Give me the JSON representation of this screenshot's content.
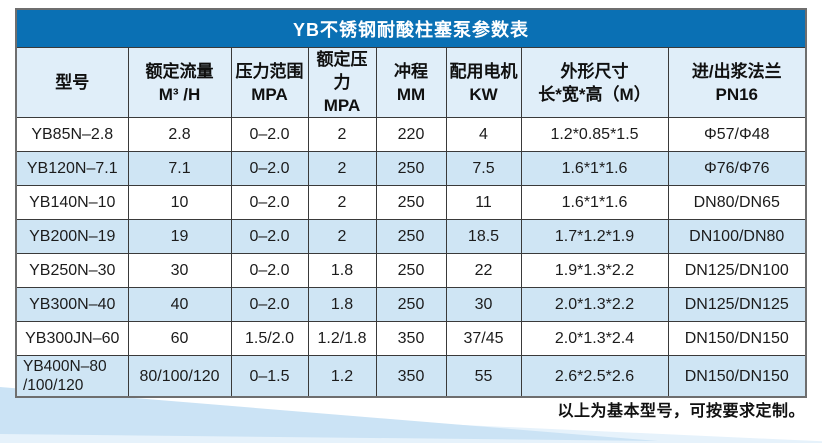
{
  "table": {
    "title": "YB不锈钢耐酸柱塞泵参数表",
    "columns": [
      {
        "id": "model",
        "label": "型号"
      },
      {
        "id": "rated-flow",
        "label": "额定流量\nM³ /H"
      },
      {
        "id": "pressure-range",
        "label": "压力范围\nMPA"
      },
      {
        "id": "rated-pressure",
        "label": "额定压力\nMPA"
      },
      {
        "id": "stroke",
        "label": "冲程\nMM"
      },
      {
        "id": "motor-power",
        "label": "配用电机\nKW"
      },
      {
        "id": "dimensions",
        "label": "外形尺寸\n长*宽*高（M）"
      },
      {
        "id": "flange",
        "label": "进/出浆法兰\nPN16"
      }
    ],
    "rows": [
      [
        "YB85N–2.8",
        "2.8",
        "0–2.0",
        "2",
        "220",
        "4",
        "1.2*0.85*1.5",
        "Φ57/Φ48"
      ],
      [
        "YB120N–7.1",
        "7.1",
        "0–2.0",
        "2",
        "250",
        "7.5",
        "1.6*1*1.6",
        "Φ76/Φ76"
      ],
      [
        "YB140N–10",
        "10",
        "0–2.0",
        "2",
        "250",
        "11",
        "1.6*1*1.6",
        "DN80/DN65"
      ],
      [
        "YB200N–19",
        "19",
        "0–2.0",
        "2",
        "250",
        "18.5",
        "1.7*1.2*1.9",
        "DN100/DN80"
      ],
      [
        "YB250N–30",
        "30",
        "0–2.0",
        "1.8",
        "250",
        "22",
        "1.9*1.3*2.2",
        "DN125/DN100"
      ],
      [
        "YB300N–40",
        "40",
        "0–2.0",
        "1.8",
        "250",
        "30",
        "2.0*1.3*2.2",
        "DN125/DN125"
      ],
      [
        "YB300JN–60",
        "60",
        "1.5/2.0",
        "1.2/1.8",
        "350",
        "37/45",
        "2.0*1.3*2.4",
        "DN150/DN150"
      ],
      [
        "YB400N–80\n/100/120",
        "80/100/120",
        "0–1.5",
        "1.2",
        "350",
        "55",
        "2.6*2.5*2.6",
        "DN150/DN150"
      ]
    ]
  },
  "footer": {
    "note": "以上为基本型号，可按要求定制。"
  },
  "colors": {
    "title_bar": "#0a70b4",
    "header_bg": "#e0eef9",
    "row_even_bg": "#cfe5f4",
    "row_odd_bg": "#ffffff",
    "border": "#3a3a3a",
    "wedge_dark": "#cbe3f5",
    "wedge_light": "#e6f2fb"
  }
}
